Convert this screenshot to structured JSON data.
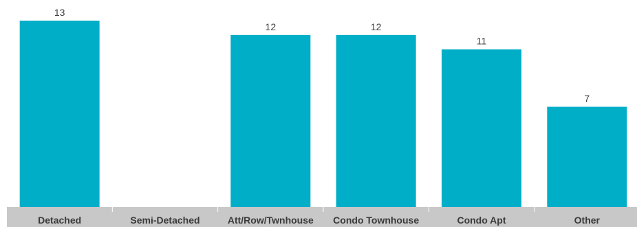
{
  "chart_data": {
    "type": "bar",
    "categories": [
      "Detached",
      "Semi-Detached",
      "Att/Row/Twnhouse",
      "Condo Townhouse",
      "Condo Apt",
      "Other"
    ],
    "values": [
      13,
      null,
      12,
      12,
      11,
      7
    ],
    "data_labels": [
      "13",
      "",
      "12",
      "12",
      "11",
      "7"
    ],
    "title": "",
    "xlabel": "",
    "ylabel": "",
    "ylim": [
      0,
      13
    ],
    "grid": false,
    "legend": "none",
    "colors": {
      "bar": "#00AEC7",
      "axis_band": "#C8C8C8",
      "separator": "#FFFFFF",
      "value_text": "#404040",
      "category_text": "#3A3A3A"
    }
  }
}
